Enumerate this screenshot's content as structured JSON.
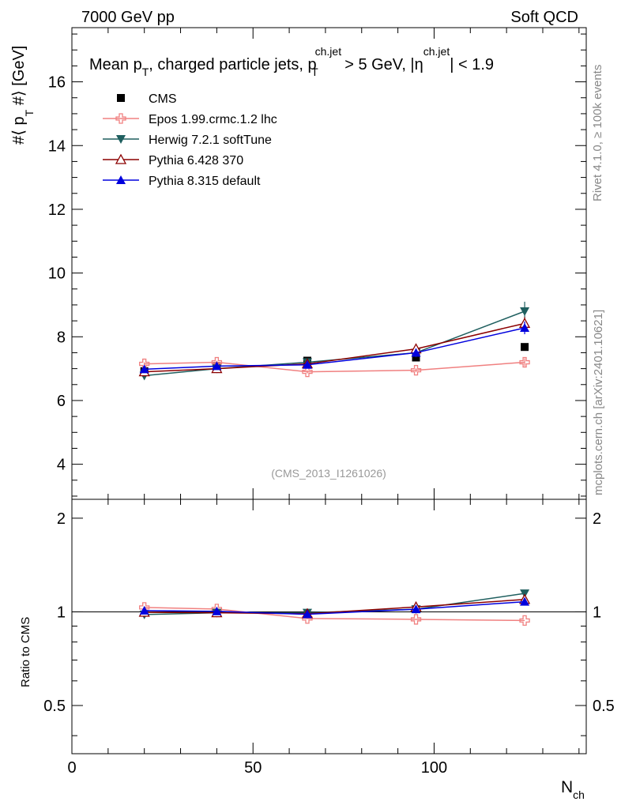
{
  "header": {
    "left": "7000 GeV pp",
    "right": "Soft QCD"
  },
  "side": {
    "rivet": "Rivet 4.1.0, ≥ 100k events",
    "mcplots": "mcplots.cern.ch [arXiv:2401.10621]"
  },
  "watermark": "(CMS_2013_I1261026)",
  "chart_data": [
    {
      "type": "scatter",
      "title_parts": {
        "a": "Mean p",
        "a_sub": "T",
        "b": ", charged particle jets, p",
        "b_sup": "ch.jet",
        "b_sub": "T",
        "c": " > 5 GeV,  |η",
        "c_sup": "ch.jet",
        "d": "| < 1.9"
      },
      "ylabel_parts": {
        "pre": "#⟨ p",
        "sub": "T",
        "post": " #⟩ [GeV]"
      },
      "xlim": [
        0,
        142
      ],
      "ylim": [
        2.9,
        17.7
      ],
      "yticks": [
        "4",
        "6",
        "8",
        "10",
        "12",
        "14",
        "16"
      ],
      "x": [
        20,
        40,
        65,
        95,
        125
      ],
      "series": [
        {
          "name": "CMS",
          "marker": "square",
          "color": "#000000",
          "values": [
            6.92,
            7.05,
            7.25,
            7.35,
            7.68
          ],
          "err": [
            0.05,
            0.05,
            0.05,
            0.06,
            0.08
          ]
        },
        {
          "name": "Epos 1.99.crmc.1.2 lhc",
          "marker": "cross",
          "color": "#f08080",
          "values": [
            7.15,
            7.2,
            6.9,
            6.95,
            7.2
          ],
          "err": [
            0.05,
            0.05,
            0.05,
            0.06,
            0.12
          ]
        },
        {
          "name": "Herwig 7.2.1 softTune",
          "marker": "tri-down",
          "color": "#1f5f5f",
          "values": [
            6.78,
            7.0,
            7.2,
            7.5,
            8.8
          ],
          "err": [
            0.05,
            0.05,
            0.05,
            0.08,
            0.3
          ]
        },
        {
          "name": "Pythia 6.428 370",
          "marker": "tri-up-open",
          "color": "#8b0000",
          "values": [
            6.9,
            7.0,
            7.15,
            7.62,
            8.42
          ],
          "err": [
            0.05,
            0.05,
            0.05,
            0.08,
            0.2
          ]
        },
        {
          "name": "Pythia 8.315 default",
          "marker": "tri-up",
          "color": "#0000dd",
          "values": [
            6.98,
            7.08,
            7.12,
            7.5,
            8.28
          ],
          "err": [
            0.05,
            0.05,
            0.05,
            0.08,
            0.2
          ]
        }
      ]
    },
    {
      "type": "scatter",
      "ylabel": "Ratio to CMS",
      "xlabel": "N",
      "xlabel_sub": "ch",
      "xticks": [
        "0",
        "50",
        "100"
      ],
      "yticks": [
        "0.5",
        "1",
        "2"
      ],
      "ylim": [
        0.35,
        2.3
      ],
      "log_y": true,
      "x": [
        20,
        40,
        65,
        95,
        125
      ],
      "series": [
        {
          "name": "Epos 1.99.crmc.1.2 lhc",
          "values": [
            1.033,
            1.021,
            0.952,
            0.946,
            0.938
          ]
        },
        {
          "name": "Herwig 7.2.1 softTune",
          "values": [
            0.98,
            0.993,
            0.993,
            1.02,
            1.146
          ]
        },
        {
          "name": "Pythia 6.428 370",
          "values": [
            0.997,
            0.993,
            0.986,
            1.037,
            1.096
          ]
        },
        {
          "name": "Pythia 8.315 default",
          "values": [
            1.009,
            1.004,
            0.982,
            1.02,
            1.078
          ]
        }
      ]
    }
  ]
}
